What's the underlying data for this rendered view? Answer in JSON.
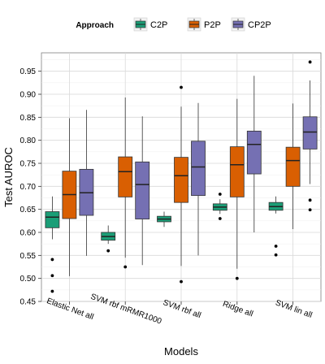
{
  "chart_data": {
    "type": "box",
    "xlabel": "Models",
    "ylabel": "Test AUROC",
    "ylim": [
      0.45,
      0.99
    ],
    "yticks": [
      0.45,
      0.5,
      0.55,
      0.6,
      0.65,
      0.7,
      0.75,
      0.8,
      0.85,
      0.9,
      0.95
    ],
    "ytick_labels": [
      "0.45",
      "0.50",
      "0.55",
      "0.60",
      "0.65",
      "0.70",
      "0.75",
      "0.80",
      "0.85",
      "0.90",
      "0.95"
    ],
    "grid": true,
    "legend_position": "top",
    "legend_title": "Approach",
    "categories": [
      "Elastic Net all",
      "SVM rbf mRMR1000",
      "SVM rbf all",
      "Ridge all",
      "SVM lin all"
    ],
    "series": [
      {
        "name": "C2P",
        "color": "#1b9e77",
        "boxes": [
          {
            "whisker_low": 0.585,
            "q1": 0.61,
            "median": 0.633,
            "q3": 0.645,
            "whisker_high": 0.678,
            "outliers": [
              0.472,
              0.506,
              0.541
            ]
          },
          {
            "whisker_low": 0.575,
            "q1": 0.583,
            "median": 0.591,
            "q3": 0.6,
            "whisker_high": 0.615,
            "outliers": [
              0.56
            ]
          },
          {
            "whisker_low": 0.612,
            "q1": 0.623,
            "median": 0.629,
            "q3": 0.635,
            "whisker_high": 0.645,
            "outliers": []
          },
          {
            "whisker_low": 0.64,
            "q1": 0.648,
            "median": 0.655,
            "q3": 0.662,
            "whisker_high": 0.672,
            "outliers": [
              0.63,
              0.683
            ]
          },
          {
            "whisker_low": 0.641,
            "q1": 0.648,
            "median": 0.656,
            "q3": 0.665,
            "whisker_high": 0.678,
            "outliers": [
              0.551,
              0.57
            ]
          }
        ]
      },
      {
        "name": "P2P",
        "color": "#d95f02",
        "boxes": [
          {
            "whisker_low": 0.505,
            "q1": 0.63,
            "median": 0.682,
            "q3": 0.733,
            "whisker_high": 0.848,
            "outliers": []
          },
          {
            "whisker_low": 0.545,
            "q1": 0.677,
            "median": 0.732,
            "q3": 0.764,
            "whisker_high": 0.893,
            "outliers": [
              0.525
            ]
          },
          {
            "whisker_low": 0.527,
            "q1": 0.665,
            "median": 0.723,
            "q3": 0.763,
            "whisker_high": 0.873,
            "outliers": [
              0.493,
              0.915
            ]
          },
          {
            "whisker_low": 0.521,
            "q1": 0.677,
            "median": 0.747,
            "q3": 0.786,
            "whisker_high": 0.89,
            "outliers": [
              0.5
            ]
          },
          {
            "whisker_low": 0.607,
            "q1": 0.7,
            "median": 0.756,
            "q3": 0.785,
            "whisker_high": 0.88,
            "outliers": []
          }
        ]
      },
      {
        "name": "CP2P",
        "color": "#7570b3",
        "boxes": [
          {
            "whisker_low": 0.549,
            "q1": 0.637,
            "median": 0.686,
            "q3": 0.737,
            "whisker_high": 0.866,
            "outliers": []
          },
          {
            "whisker_low": 0.529,
            "q1": 0.629,
            "median": 0.704,
            "q3": 0.753,
            "whisker_high": 0.852,
            "outliers": []
          },
          {
            "whisker_low": 0.55,
            "q1": 0.68,
            "median": 0.742,
            "q3": 0.798,
            "whisker_high": 0.881,
            "outliers": []
          },
          {
            "whisker_low": 0.6,
            "q1": 0.727,
            "median": 0.791,
            "q3": 0.82,
            "whisker_high": 0.94,
            "outliers": []
          },
          {
            "whisker_low": 0.705,
            "q1": 0.781,
            "median": 0.818,
            "q3": 0.851,
            "whisker_high": 0.93,
            "outliers": [
              0.649,
              0.67,
              0.97
            ]
          }
        ]
      }
    ]
  }
}
